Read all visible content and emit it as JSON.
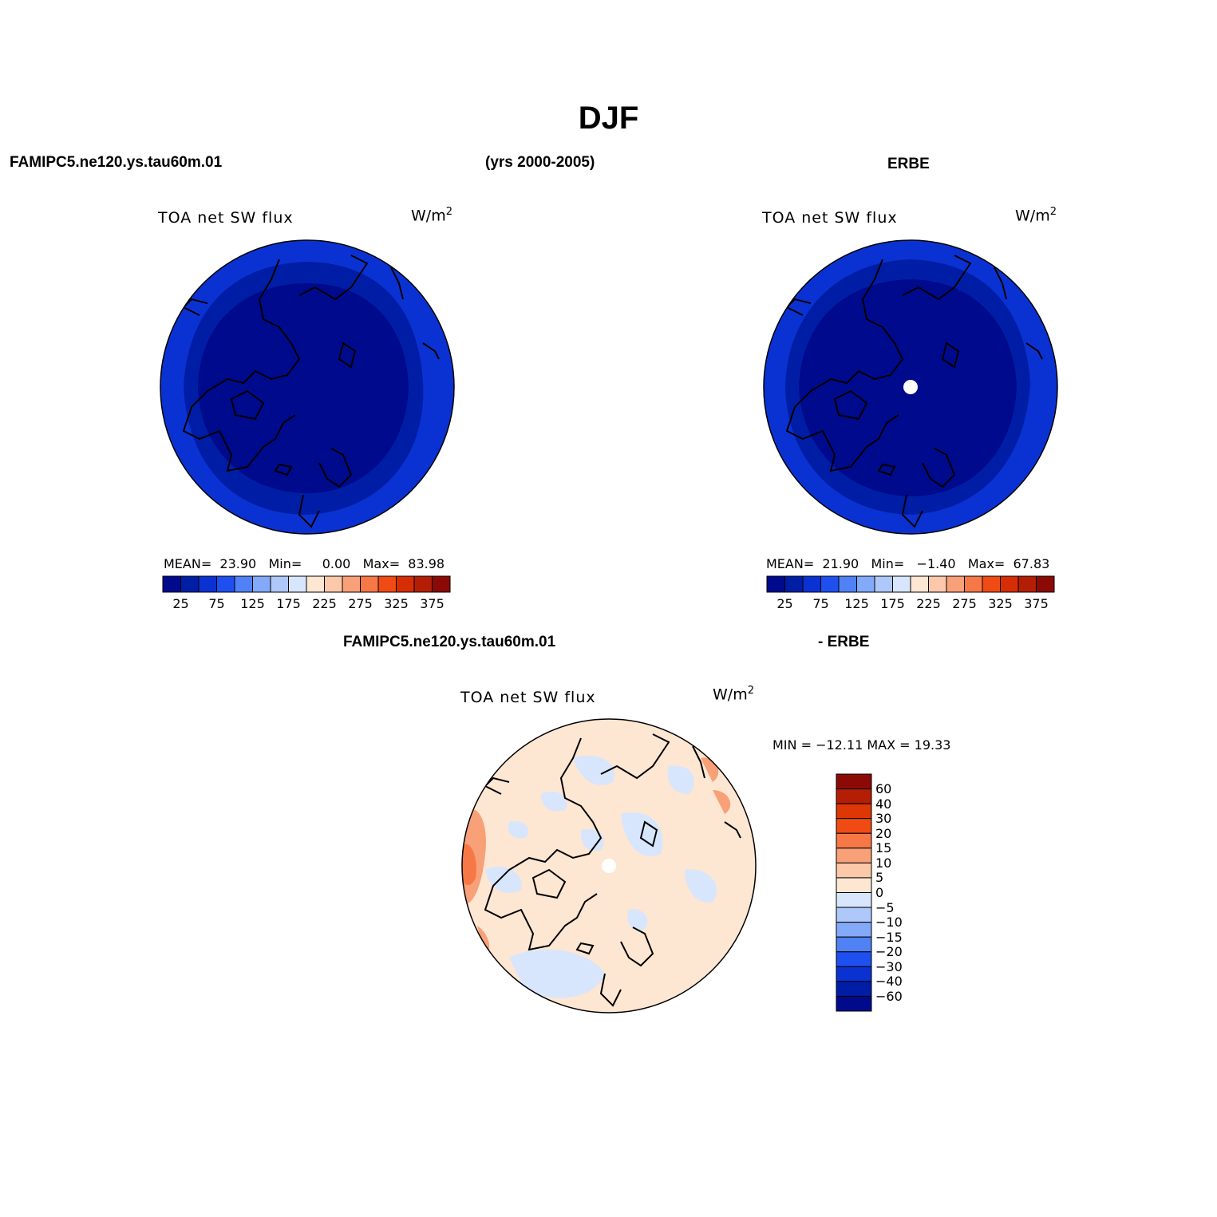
{
  "figure": {
    "title": "DJF",
    "left_header": "FAMIPC5.ne120.ys.tau60m.01",
    "center_header": "(yrs 2000-2005)",
    "right_header": "ERBE",
    "diff_header_left": "FAMIPC5.ne120.ys.tau60m.01",
    "diff_header_right": "- ERBE"
  },
  "panel_model": {
    "title": "TOA net SW flux",
    "unit_base": "W/m",
    "unit_sup": "2",
    "stats": {
      "mean_label": "MEAN=",
      "mean": "23.90",
      "min_label": "Min=",
      "min": "0.00",
      "max_label": "Max=",
      "max": "83.98"
    },
    "projection": "north polar stereographic",
    "field_summary": "values mostly in lowest bins (0-50 W/m2) across the Arctic"
  },
  "panel_obs": {
    "title": "TOA net SW flux",
    "unit_base": "W/m",
    "unit_sup": "2",
    "stats": {
      "mean_label": "MEAN=",
      "mean": "21.90",
      "min_label": "Min=",
      "min": "−1.40",
      "max_label": "Max=",
      "max": "67.83"
    },
    "projection": "north polar stereographic",
    "pole_missing": true
  },
  "panel_diff": {
    "title": "TOA net SW flux",
    "unit_base": "W/m",
    "unit_sup": "2",
    "minmax_text": "MIN = −12.11 MAX =   19.33",
    "projection": "north polar stereographic",
    "pole_missing": true
  },
  "colorbar_abs": {
    "colors": [
      "#000a8c",
      "#001ea5",
      "#0a32d2",
      "#1e50f0",
      "#5082f5",
      "#82aaf8",
      "#afc8fa",
      "#d7e6fc",
      "#fde6d2",
      "#fcc8aa",
      "#f8a078",
      "#f57846",
      "#f04b14",
      "#d72d05",
      "#b41e05",
      "#8c0a05"
    ],
    "tick_labels": [
      "25",
      "75",
      "125",
      "175",
      "225",
      "275",
      "325",
      "375"
    ]
  },
  "colorbar_diff": {
    "colors_top_to_bottom": [
      "#8c0a05",
      "#b41e05",
      "#dc3705",
      "#f04b14",
      "#f57846",
      "#f8a078",
      "#fcc8aa",
      "#fde6d2",
      "#d7e6fc",
      "#afc8fa",
      "#82aaf8",
      "#5082f5",
      "#1e50f0",
      "#0a32d2",
      "#001ea5",
      "#000a8c"
    ],
    "tick_labels_top_to_bottom": [
      "60",
      "40",
      "30",
      "20",
      "15",
      "10",
      "5",
      "0",
      "−5",
      "−10",
      "−15",
      "−20",
      "−30",
      "−40",
      "−60"
    ]
  }
}
